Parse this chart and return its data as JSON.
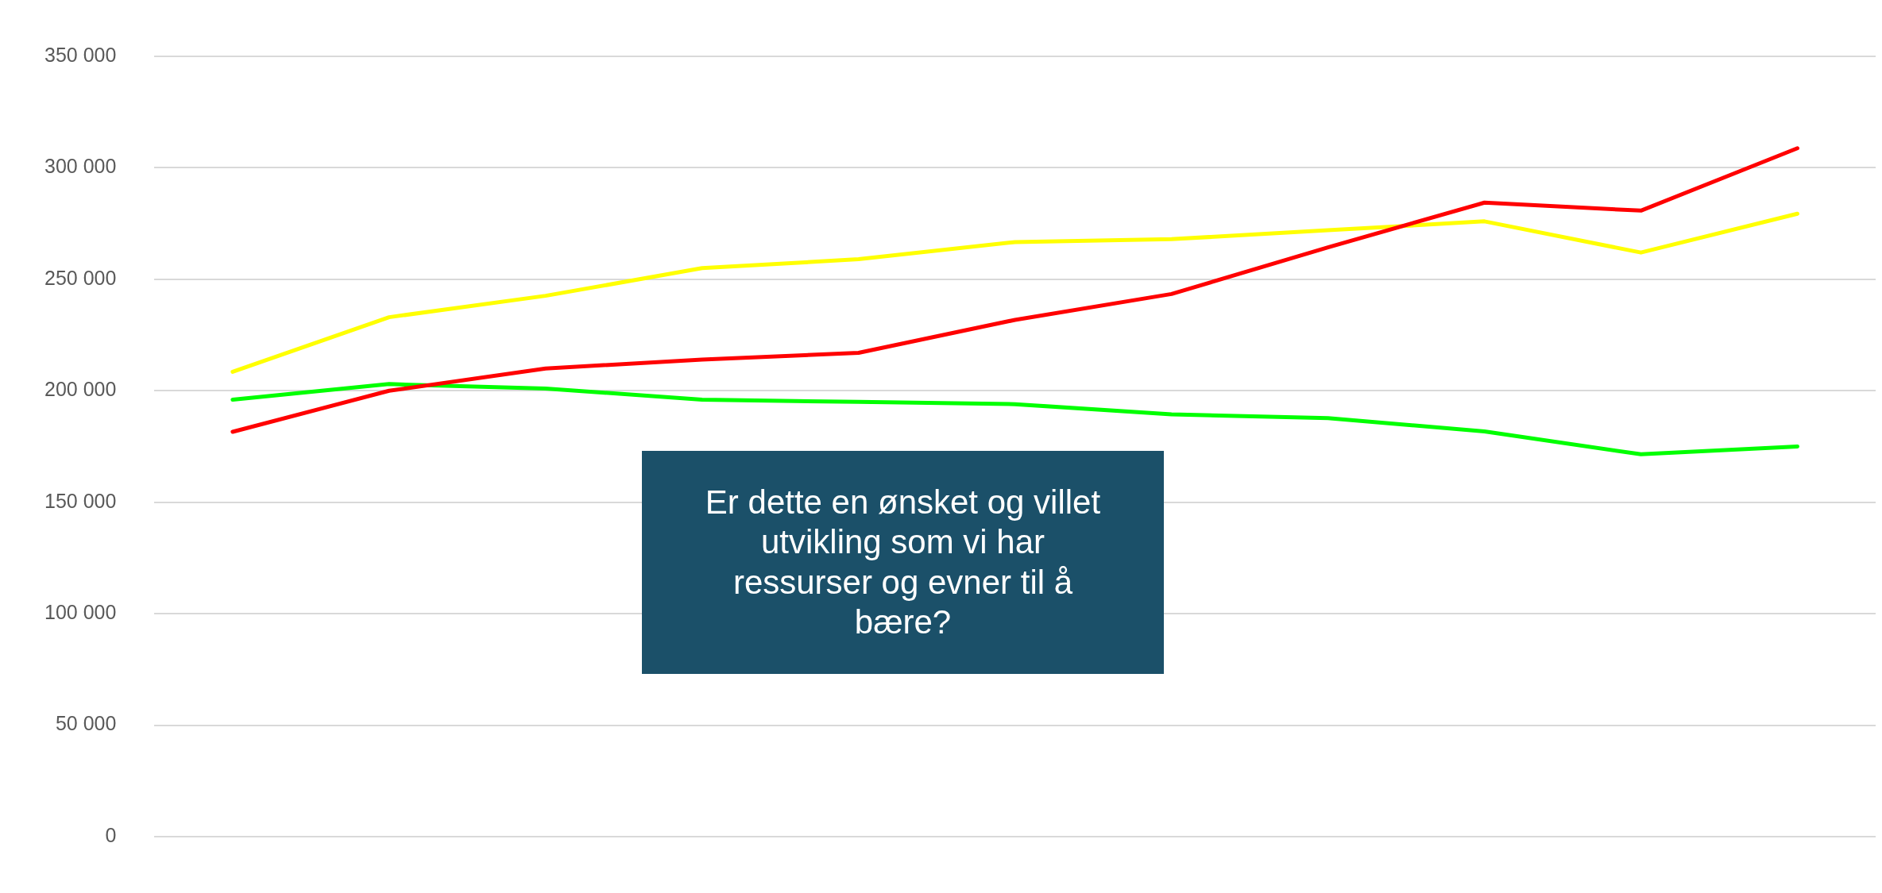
{
  "chart_data": {
    "type": "line",
    "categories": [
      null,
      null,
      null,
      null,
      null,
      null,
      null,
      null,
      null,
      null,
      null
    ],
    "series": [
      {
        "color": "#ff0000",
        "values": [
          181600,
          200000,
          210000,
          214000,
          217000,
          231800,
          243400,
          264300,
          284400,
          280800,
          308800
        ]
      },
      {
        "color": "#ffff00",
        "values": [
          208500,
          233000,
          242600,
          255000,
          259000,
          266700,
          268000,
          272000,
          276000,
          262000,
          279400
        ]
      },
      {
        "color": "#00ff00",
        "values": [
          196000,
          203000,
          201000,
          196000,
          195000,
          194000,
          189400,
          187700,
          181800,
          171500,
          175000
        ]
      }
    ],
    "ylim": [
      0,
      350000
    ],
    "yticks": [
      {
        "value": 0,
        "label": "0"
      },
      {
        "value": 50000,
        "label": "50 000"
      },
      {
        "value": 100000,
        "label": "100 000"
      },
      {
        "value": 150000,
        "label": "150 000"
      },
      {
        "value": 200000,
        "label": "200 000"
      },
      {
        "value": 250000,
        "label": "250 000"
      },
      {
        "value": 300000,
        "label": "300 000"
      },
      {
        "value": 350000,
        "label": "350 000"
      }
    ],
    "grid": "y",
    "tick_labels": "y",
    "legend": false,
    "marker": "none",
    "line_style": "solid",
    "annotations": [
      "Er dette en ønsket og villet utvikling som vi har ressurser og evner til å bære?"
    ]
  }
}
